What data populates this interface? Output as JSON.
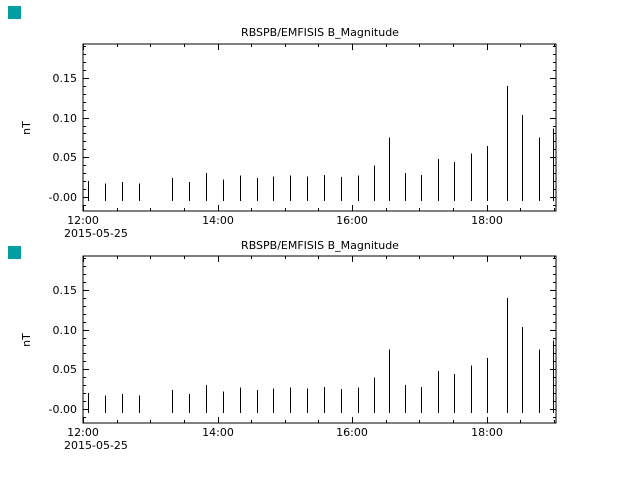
{
  "window": {
    "background": "#ffffff",
    "marker_color": "#009e9e"
  },
  "chart_data": [
    {
      "type": "bar",
      "style": "thin-vertical-spikes",
      "title": "RBSPB/EMFISIS B_Magnitude",
      "ylabel": "nT",
      "xlabel": "",
      "date_label": "2015-05-25",
      "xlim_hours": [
        0,
        7.03
      ],
      "ylim": [
        -0.0175,
        0.1925
      ],
      "x_minor_hours": 0.5,
      "y_minor": 0.01,
      "baseline": -0.005,
      "x_ticks": [
        {
          "t": 0,
          "label": "12:00"
        },
        {
          "t": 2,
          "label": "14:00"
        },
        {
          "t": 4,
          "label": "16:00"
        },
        {
          "t": 6,
          "label": "18:00"
        }
      ],
      "y_ticks": [
        {
          "v": 0.0,
          "label": "-0.00"
        },
        {
          "v": 0.05,
          "label": "0.05"
        },
        {
          "v": 0.1,
          "label": "0.10"
        },
        {
          "v": 0.15,
          "label": "0.15"
        }
      ],
      "x": [
        0.08,
        0.33,
        0.58,
        0.83,
        1.33,
        1.58,
        1.83,
        2.08,
        2.33,
        2.58,
        2.83,
        3.08,
        3.33,
        3.58,
        3.83,
        4.08,
        4.33,
        4.55,
        4.78,
        5.03,
        5.28,
        5.52,
        5.77,
        6.0,
        6.3,
        6.52,
        6.77,
        6.98
      ],
      "y": [
        0.02,
        0.017,
        0.019,
        0.017,
        0.024,
        0.019,
        0.03,
        0.022,
        0.027,
        0.024,
        0.026,
        0.027,
        0.026,
        0.028,
        0.025,
        0.027,
        0.04,
        0.075,
        0.03,
        0.028,
        0.048,
        0.044,
        0.055,
        0.064,
        0.14,
        0.103,
        0.075,
        0.086
      ]
    },
    {
      "type": "bar",
      "style": "thin-vertical-spikes",
      "title": "RBSPB/EMFISIS B_Magnitude",
      "ylabel": "nT",
      "xlabel": "",
      "date_label": "2015-05-25",
      "xlim_hours": [
        0,
        7.03
      ],
      "ylim": [
        -0.0175,
        0.1925
      ],
      "x_minor_hours": 0.5,
      "y_minor": 0.01,
      "baseline": -0.005,
      "x_ticks": [
        {
          "t": 0,
          "label": "12:00"
        },
        {
          "t": 2,
          "label": "14:00"
        },
        {
          "t": 4,
          "label": "16:00"
        },
        {
          "t": 6,
          "label": "18:00"
        }
      ],
      "y_ticks": [
        {
          "v": 0.0,
          "label": "-0.00"
        },
        {
          "v": 0.05,
          "label": "0.05"
        },
        {
          "v": 0.1,
          "label": "0.10"
        },
        {
          "v": 0.15,
          "label": "0.15"
        }
      ],
      "x": [
        0.08,
        0.33,
        0.58,
        0.83,
        1.33,
        1.58,
        1.83,
        2.08,
        2.33,
        2.58,
        2.83,
        3.08,
        3.33,
        3.58,
        3.83,
        4.08,
        4.33,
        4.55,
        4.78,
        5.03,
        5.28,
        5.52,
        5.77,
        6.0,
        6.3,
        6.52,
        6.77,
        6.98
      ],
      "y": [
        0.02,
        0.017,
        0.019,
        0.017,
        0.024,
        0.019,
        0.03,
        0.022,
        0.027,
        0.024,
        0.026,
        0.027,
        0.026,
        0.028,
        0.025,
        0.027,
        0.04,
        0.075,
        0.03,
        0.028,
        0.048,
        0.044,
        0.055,
        0.064,
        0.14,
        0.103,
        0.075,
        0.086
      ]
    }
  ]
}
